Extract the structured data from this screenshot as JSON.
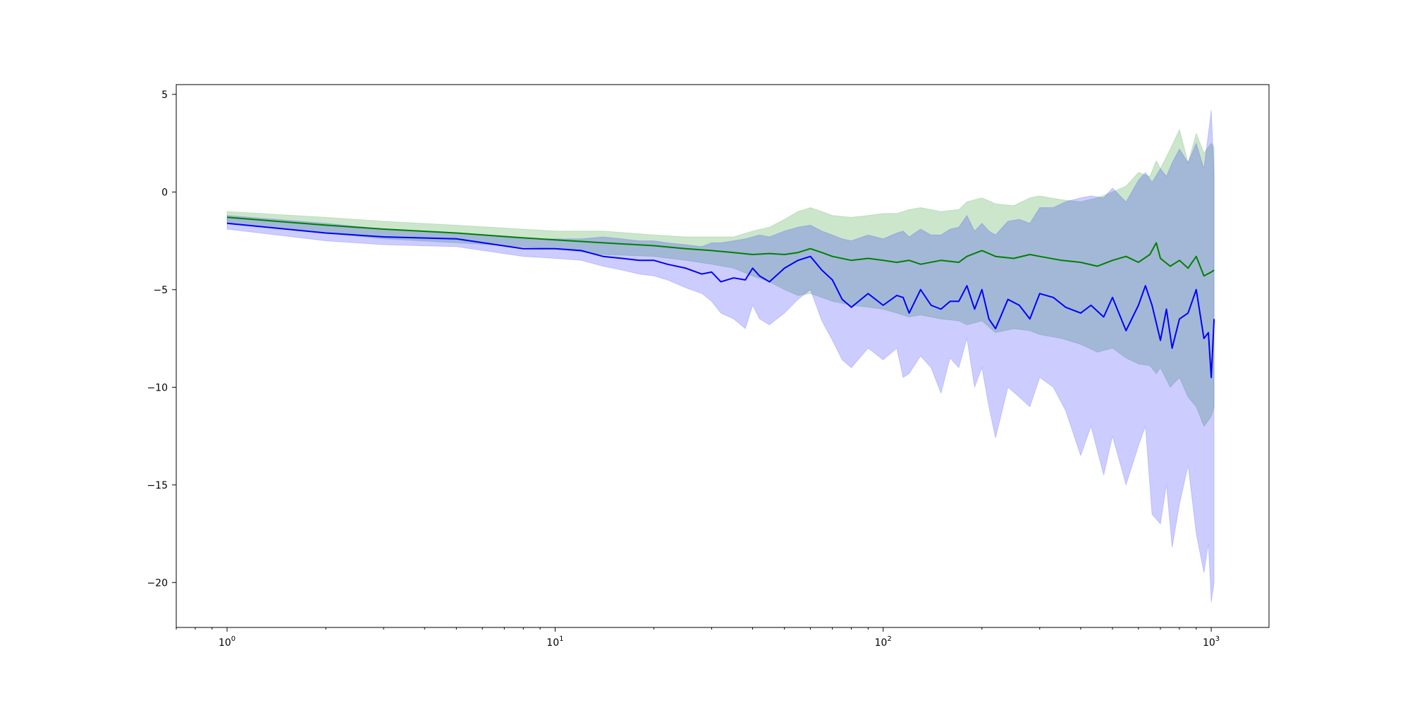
{
  "chart_data": {
    "type": "line",
    "title": "",
    "xlabel": "",
    "ylabel": "",
    "x_scale": "log",
    "xlim": [
      0.7,
      1500
    ],
    "ylim": [
      -22.3,
      5.5
    ],
    "grid": false,
    "legend": "none",
    "x_ticks": [
      {
        "value": 1,
        "base": "10",
        "exp": "0"
      },
      {
        "value": 10,
        "base": "10",
        "exp": "1"
      },
      {
        "value": 100,
        "base": "10",
        "exp": "2"
      },
      {
        "value": 1000,
        "base": "10",
        "exp": "3"
      }
    ],
    "y_ticks": [
      {
        "value": 5,
        "label": "5"
      },
      {
        "value": 0,
        "label": "0"
      },
      {
        "value": -5,
        "label": "−5"
      },
      {
        "value": -10,
        "label": "−10"
      },
      {
        "value": -15,
        "label": "−15"
      },
      {
        "value": -20,
        "label": "−20"
      }
    ],
    "series": [
      {
        "color": "#008000",
        "band_color": "#008000",
        "band_opacity": 0.2,
        "x": [
          1,
          2,
          3,
          5,
          8,
          10,
          14,
          20,
          25,
          30,
          35,
          40,
          45,
          50,
          55,
          60,
          65,
          70,
          80,
          90,
          100,
          110,
          120,
          130,
          150,
          170,
          180,
          200,
          220,
          250,
          280,
          300,
          350,
          400,
          450,
          500,
          550,
          600,
          650,
          680,
          700,
          750,
          800,
          850,
          900,
          950,
          1000,
          1020
        ],
        "y": [
          -1.3,
          -1.7,
          -1.9,
          -2.1,
          -2.35,
          -2.45,
          -2.6,
          -2.75,
          -2.9,
          -3.0,
          -3.1,
          -3.2,
          -3.15,
          -3.2,
          -3.1,
          -2.9,
          -3.1,
          -3.3,
          -3.5,
          -3.4,
          -3.5,
          -3.6,
          -3.5,
          -3.7,
          -3.5,
          -3.6,
          -3.3,
          -3.0,
          -3.3,
          -3.4,
          -3.2,
          -3.3,
          -3.5,
          -3.6,
          -3.8,
          -3.5,
          -3.3,
          -3.6,
          -3.2,
          -2.6,
          -3.4,
          -3.8,
          -3.5,
          -3.9,
          -3.3,
          -4.3,
          -4.1,
          -4.0
        ],
        "upper": [
          -1.0,
          -1.3,
          -1.5,
          -1.7,
          -1.9,
          -2.0,
          -2.0,
          -2.2,
          -2.3,
          -2.3,
          -2.3,
          -2.0,
          -1.8,
          -1.4,
          -1.0,
          -0.8,
          -1.0,
          -1.2,
          -1.3,
          -1.2,
          -1.1,
          -1.1,
          -0.9,
          -0.8,
          -1.0,
          -0.9,
          -0.5,
          -0.3,
          -0.6,
          -0.7,
          -0.3,
          -0.2,
          -0.4,
          -0.5,
          -0.3,
          0.0,
          0.3,
          1.0,
          0.8,
          1.6,
          1.2,
          2.2,
          3.2,
          1.5,
          3.0,
          2.0,
          2.5,
          2.3
        ],
        "lower": [
          -1.6,
          -2.1,
          -2.4,
          -2.6,
          -2.8,
          -2.9,
          -3.2,
          -3.3,
          -3.5,
          -3.7,
          -3.9,
          -4.3,
          -4.6,
          -5.0,
          -5.3,
          -5.2,
          -5.4,
          -5.6,
          -5.8,
          -5.9,
          -6.0,
          -6.2,
          -6.4,
          -6.3,
          -6.5,
          -6.6,
          -6.8,
          -6.6,
          -7.2,
          -7.0,
          -7.1,
          -7.3,
          -7.5,
          -7.8,
          -8.2,
          -8.0,
          -8.5,
          -8.8,
          -8.9,
          -9.3,
          -9.0,
          -10.0,
          -9.5,
          -10.5,
          -11.0,
          -12.0,
          -11.5,
          -11.0
        ]
      },
      {
        "color": "#0000ff",
        "band_color": "#0000ff",
        "band_opacity": 0.2,
        "x": [
          1,
          2,
          3,
          5,
          8,
          10,
          12,
          14,
          16,
          18,
          20,
          22,
          25,
          28,
          30,
          32,
          35,
          38,
          40,
          42,
          45,
          50,
          55,
          60,
          65,
          70,
          75,
          80,
          90,
          100,
          110,
          115,
          120,
          130,
          140,
          150,
          160,
          170,
          180,
          190,
          200,
          210,
          220,
          240,
          260,
          280,
          300,
          330,
          360,
          400,
          430,
          470,
          500,
          550,
          600,
          630,
          660,
          700,
          730,
          760,
          800,
          850,
          900,
          950,
          980,
          1000,
          1020
        ],
        "y": [
          -1.6,
          -2.1,
          -2.3,
          -2.4,
          -2.9,
          -2.9,
          -3.0,
          -3.3,
          -3.4,
          -3.5,
          -3.5,
          -3.7,
          -3.9,
          -4.2,
          -4.1,
          -4.6,
          -4.4,
          -4.5,
          -3.9,
          -4.3,
          -4.6,
          -3.9,
          -3.5,
          -3.3,
          -4.0,
          -4.5,
          -5.5,
          -5.9,
          -5.2,
          -5.8,
          -5.3,
          -5.4,
          -6.2,
          -5.0,
          -5.8,
          -6.0,
          -5.6,
          -5.6,
          -4.8,
          -6.0,
          -5.0,
          -6.5,
          -7.0,
          -5.5,
          -5.8,
          -6.5,
          -5.2,
          -5.4,
          -5.9,
          -6.2,
          -5.8,
          -6.4,
          -5.4,
          -7.1,
          -5.8,
          -4.8,
          -5.8,
          -7.6,
          -6.0,
          -8.0,
          -6.5,
          -6.2,
          -5.0,
          -7.5,
          -7.2,
          -9.5,
          -6.5
        ],
        "upper": [
          -1.2,
          -1.6,
          -1.9,
          -2.1,
          -2.4,
          -2.4,
          -2.4,
          -2.3,
          -2.4,
          -2.5,
          -2.5,
          -2.6,
          -2.7,
          -2.8,
          -2.6,
          -2.6,
          -2.5,
          -2.4,
          -2.3,
          -2.2,
          -2.3,
          -2.0,
          -1.8,
          -1.7,
          -2.0,
          -2.2,
          -2.4,
          -2.5,
          -2.2,
          -2.4,
          -2.1,
          -2.0,
          -2.3,
          -1.9,
          -2.2,
          -2.2,
          -1.9,
          -1.8,
          -1.2,
          -2.0,
          -1.6,
          -2.0,
          -2.2,
          -1.5,
          -1.4,
          -1.6,
          -0.8,
          -0.8,
          -0.5,
          -0.3,
          -0.2,
          -0.3,
          0.2,
          -0.5,
          0.6,
          1.0,
          0.5,
          1.2,
          0.8,
          1.5,
          2.2,
          1.5,
          2.5,
          1.2,
          3.0,
          4.2,
          1.0
        ],
        "lower": [
          -1.9,
          -2.5,
          -2.7,
          -2.8,
          -3.3,
          -3.4,
          -3.5,
          -3.8,
          -4.0,
          -4.2,
          -4.3,
          -4.5,
          -4.9,
          -5.2,
          -5.6,
          -6.2,
          -6.5,
          -7.0,
          -5.8,
          -6.5,
          -6.8,
          -6.2,
          -5.5,
          -5.0,
          -6.6,
          -7.6,
          -8.6,
          -9.0,
          -8.0,
          -8.6,
          -8.0,
          -9.5,
          -9.3,
          -8.4,
          -9.0,
          -10.3,
          -8.5,
          -9.0,
          -7.5,
          -10.0,
          -9.0,
          -11.0,
          -12.6,
          -10.0,
          -10.5,
          -11.0,
          -9.5,
          -10.0,
          -11.2,
          -13.5,
          -12.0,
          -14.5,
          -12.5,
          -15.0,
          -13.0,
          -12.0,
          -16.5,
          -17.0,
          -15.0,
          -18.2,
          -16.0,
          -14.0,
          -17.5,
          -19.5,
          -18.0,
          -21.0,
          -20.0
        ]
      }
    ]
  }
}
